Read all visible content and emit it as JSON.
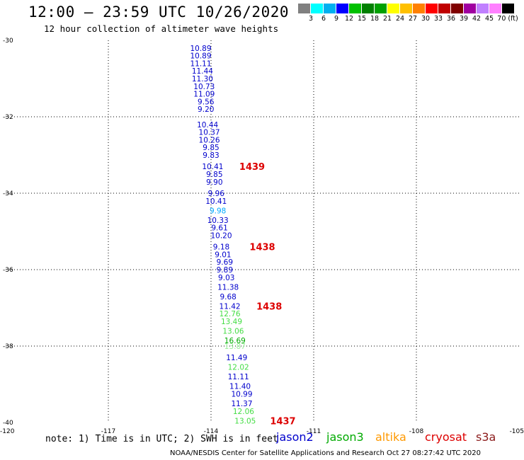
{
  "header": {
    "title": "12:00 – 23:59 UTC 10/26/2020",
    "subtitle": "12 hour collection of altimeter wave heights"
  },
  "legend": {
    "swatches": [
      "#808080",
      "#00ffff",
      "#00b0f0",
      "#0000ff",
      "#00c000",
      "#008000",
      "#00a000",
      "#ffff00",
      "#ffc000",
      "#ff8000",
      "#ff0000",
      "#c00000",
      "#800000",
      "#a000a0",
      "#c080ff",
      "#ff80ff",
      "#000000"
    ],
    "labels": [
      "3",
      "6",
      "9",
      "12",
      "15",
      "18",
      "21",
      "24",
      "27",
      "30",
      "33",
      "36",
      "39",
      "42",
      "45",
      "70 (ft)"
    ]
  },
  "axes": {
    "y_labels": [
      "-30",
      "-32",
      "-34",
      "-36",
      "-38",
      "-40"
    ],
    "x_labels": [
      "-120",
      "-117",
      "-114",
      "-111",
      "-108",
      "-105"
    ]
  },
  "wave_heights": [
    {
      "value": "10.89",
      "lat": -30.2,
      "lon": -114.3,
      "color": "#0000cc"
    },
    {
      "value": "10.89",
      "lat": -30.4,
      "lon": -114.3,
      "color": "#0000cc"
    },
    {
      "value": "11.11",
      "lat": -30.6,
      "lon": -114.3,
      "color": "#0000cc"
    },
    {
      "value": "11.44",
      "lat": -30.8,
      "lon": -114.25,
      "color": "#0000cc"
    },
    {
      "value": "11.30",
      "lat": -31.0,
      "lon": -114.25,
      "color": "#0000cc"
    },
    {
      "value": "10.73",
      "lat": -31.2,
      "lon": -114.2,
      "color": "#0000cc"
    },
    {
      "value": "11.09",
      "lat": -31.4,
      "lon": -114.2,
      "color": "#0000cc"
    },
    {
      "value": "9.56",
      "lat": -31.6,
      "lon": -114.15,
      "color": "#0000cc"
    },
    {
      "value": "9.20",
      "lat": -31.8,
      "lon": -114.15,
      "color": "#0000cc"
    },
    {
      "value": "10.44",
      "lat": -32.2,
      "lon": -114.1,
      "color": "#0000cc"
    },
    {
      "value": "10.37",
      "lat": -32.4,
      "lon": -114.05,
      "color": "#0000cc"
    },
    {
      "value": "10.26",
      "lat": -32.6,
      "lon": -114.05,
      "color": "#0000cc"
    },
    {
      "value": "9.85",
      "lat": -32.8,
      "lon": -114.0,
      "color": "#0000cc"
    },
    {
      "value": "9.83",
      "lat": -33.0,
      "lon": -114.0,
      "color": "#0000cc"
    },
    {
      "value": "10.41",
      "lat": -33.3,
      "lon": -113.95,
      "color": "#0000cc"
    },
    {
      "value": "9.85",
      "lat": -33.5,
      "lon": -113.9,
      "color": "#0000cc"
    },
    {
      "value": "9.90",
      "lat": -33.7,
      "lon": -113.9,
      "color": "#0000cc"
    },
    {
      "value": "9.96",
      "lat": -34.0,
      "lon": -113.85,
      "color": "#0000cc"
    },
    {
      "value": "10.41",
      "lat": -34.2,
      "lon": -113.85,
      "color": "#0000cc"
    },
    {
      "value": "9.98",
      "lat": -34.45,
      "lon": -113.8,
      "color": "#00aaff"
    },
    {
      "value": "10.33",
      "lat": -34.7,
      "lon": -113.8,
      "color": "#0000cc"
    },
    {
      "value": "9.61",
      "lat": -34.9,
      "lon": -113.75,
      "color": "#0000cc"
    },
    {
      "value": "10.20",
      "lat": -35.1,
      "lon": -113.7,
      "color": "#0000cc"
    },
    {
      "value": "9.18",
      "lat": -35.4,
      "lon": -113.7,
      "color": "#0000cc"
    },
    {
      "value": "9.01",
      "lat": -35.6,
      "lon": -113.65,
      "color": "#0000cc"
    },
    {
      "value": "9.69",
      "lat": -35.8,
      "lon": -113.6,
      "color": "#0000cc"
    },
    {
      "value": "9.89",
      "lat": -36.0,
      "lon": -113.6,
      "color": "#0000cc"
    },
    {
      "value": "9.03",
      "lat": -36.2,
      "lon": -113.55,
      "color": "#0000cc"
    },
    {
      "value": "11.38",
      "lat": -36.45,
      "lon": -113.5,
      "color": "#0000cc"
    },
    {
      "value": "9.68",
      "lat": -36.7,
      "lon": -113.5,
      "color": "#0000cc"
    },
    {
      "value": "11.42",
      "lat": -36.95,
      "lon": -113.45,
      "color": "#0000cc"
    },
    {
      "value": "12.76",
      "lat": -37.15,
      "lon": -113.45,
      "color": "#44dd44"
    },
    {
      "value": "13.49",
      "lat": -37.35,
      "lon": -113.4,
      "color": "#44dd44"
    },
    {
      "value": "13.06",
      "lat": -37.6,
      "lon": -113.35,
      "color": "#44dd44"
    },
    {
      "value": "16.69",
      "lat": -37.85,
      "lon": -113.3,
      "color": "#00aa00"
    },
    {
      "value": "13.87",
      "lat": -38.0,
      "lon": -113.3,
      "color": "#99ee99"
    },
    {
      "value": "11.49",
      "lat": -38.3,
      "lon": -113.25,
      "color": "#0000cc"
    },
    {
      "value": "12.02",
      "lat": -38.55,
      "lon": -113.2,
      "color": "#44dd44"
    },
    {
      "value": "11.11",
      "lat": -38.8,
      "lon": -113.2,
      "color": "#0000cc"
    },
    {
      "value": "11.40",
      "lat": -39.05,
      "lon": -113.15,
      "color": "#0000cc"
    },
    {
      "value": "10.99",
      "lat": -39.25,
      "lon": -113.1,
      "color": "#0000cc"
    },
    {
      "value": "11.37",
      "lat": -39.5,
      "lon": -113.1,
      "color": "#0000cc"
    },
    {
      "value": "12.06",
      "lat": -39.7,
      "lon": -113.05,
      "color": "#44dd44"
    },
    {
      "value": "13.05",
      "lat": -39.95,
      "lon": -113.0,
      "color": "#44dd44"
    }
  ],
  "time_labels": [
    {
      "value": "1439",
      "lat": -33.3,
      "lon": -112.8
    },
    {
      "value": "1438",
      "lat": -35.4,
      "lon": -112.5
    },
    {
      "value": "1438",
      "lat": -36.95,
      "lon": -112.3
    },
    {
      "value": "1437",
      "lat": -39.95,
      "lon": -111.9
    }
  ],
  "footer": {
    "note": "note: 1) Time is in UTC; 2) SWH is in feet",
    "credit": "NOAA/NESDIS Center for Satellite Applications and Research   Oct 27 08:27:42 UTC 2020",
    "satellites": [
      {
        "name": "jason2",
        "color": "#0000cc"
      },
      {
        "name": "jason3",
        "color": "#00aa00"
      },
      {
        "name": "altika",
        "color": "#ff9900"
      },
      {
        "name": "cryosat",
        "color": "#dd0000"
      },
      {
        "name": "s3a",
        "color": "#8b1a1a"
      }
    ]
  }
}
